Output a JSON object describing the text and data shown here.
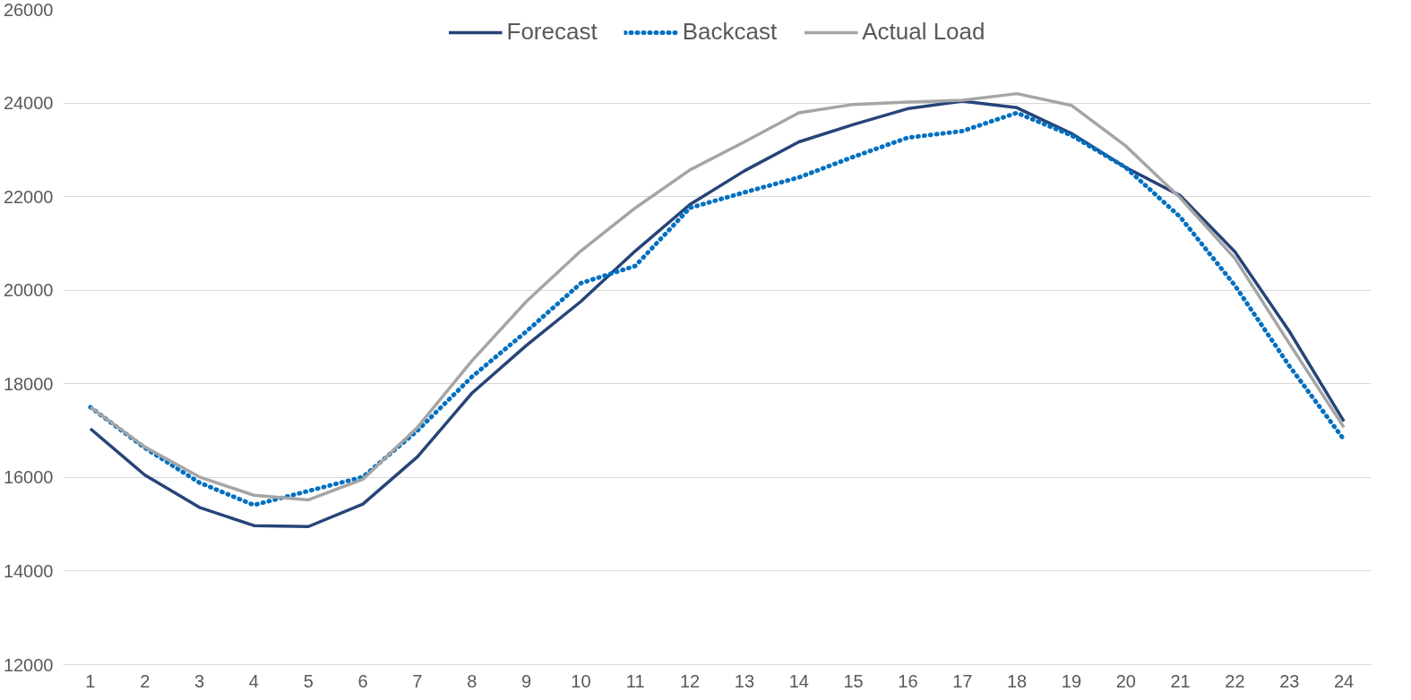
{
  "chart_data": {
    "type": "line",
    "x": [
      1,
      2,
      3,
      4,
      5,
      6,
      7,
      8,
      9,
      10,
      11,
      12,
      13,
      14,
      15,
      16,
      17,
      18,
      19,
      20,
      21,
      22,
      23,
      24
    ],
    "series": [
      {
        "name": "Forecast",
        "color": "#264478",
        "line_style": "solid",
        "values": [
          17040,
          16050,
          15360,
          14970,
          14950,
          15430,
          16440,
          17800,
          18820,
          19760,
          20840,
          21830,
          22550,
          23170,
          23540,
          23880,
          24040,
          23900,
          23350,
          22620,
          22020,
          20820,
          19120,
          17200
        ]
      },
      {
        "name": "Backcast",
        "color": "#0070c0",
        "line_style": "dotted",
        "values": [
          17500,
          16630,
          15890,
          15410,
          15710,
          16010,
          17000,
          18150,
          19120,
          20150,
          20520,
          21760,
          22090,
          22410,
          22850,
          23260,
          23400,
          23790,
          23310,
          22620,
          21560,
          20100,
          18380,
          16810
        ]
      },
      {
        "name": "Actual Load",
        "color": "#a5a5a5",
        "line_style": "solid",
        "values": [
          17500,
          16650,
          16010,
          15620,
          15520,
          15960,
          17070,
          18490,
          19760,
          20840,
          21760,
          22570,
          23170,
          23790,
          23970,
          24020,
          24060,
          24200,
          23950,
          23080,
          21970,
          20680,
          18860,
          17070
        ]
      }
    ],
    "xlim": [
      0.5,
      24.5
    ],
    "xticks": [
      1,
      2,
      3,
      4,
      5,
      6,
      7,
      8,
      9,
      10,
      11,
      12,
      13,
      14,
      15,
      16,
      17,
      18,
      19,
      20,
      21,
      22,
      23,
      24
    ],
    "ylim": [
      12000,
      26000
    ],
    "yticks": [
      12000,
      14000,
      16000,
      18000,
      20000,
      22000,
      24000,
      26000
    ],
    "grid": "y",
    "legend": "top",
    "marker": "none"
  }
}
